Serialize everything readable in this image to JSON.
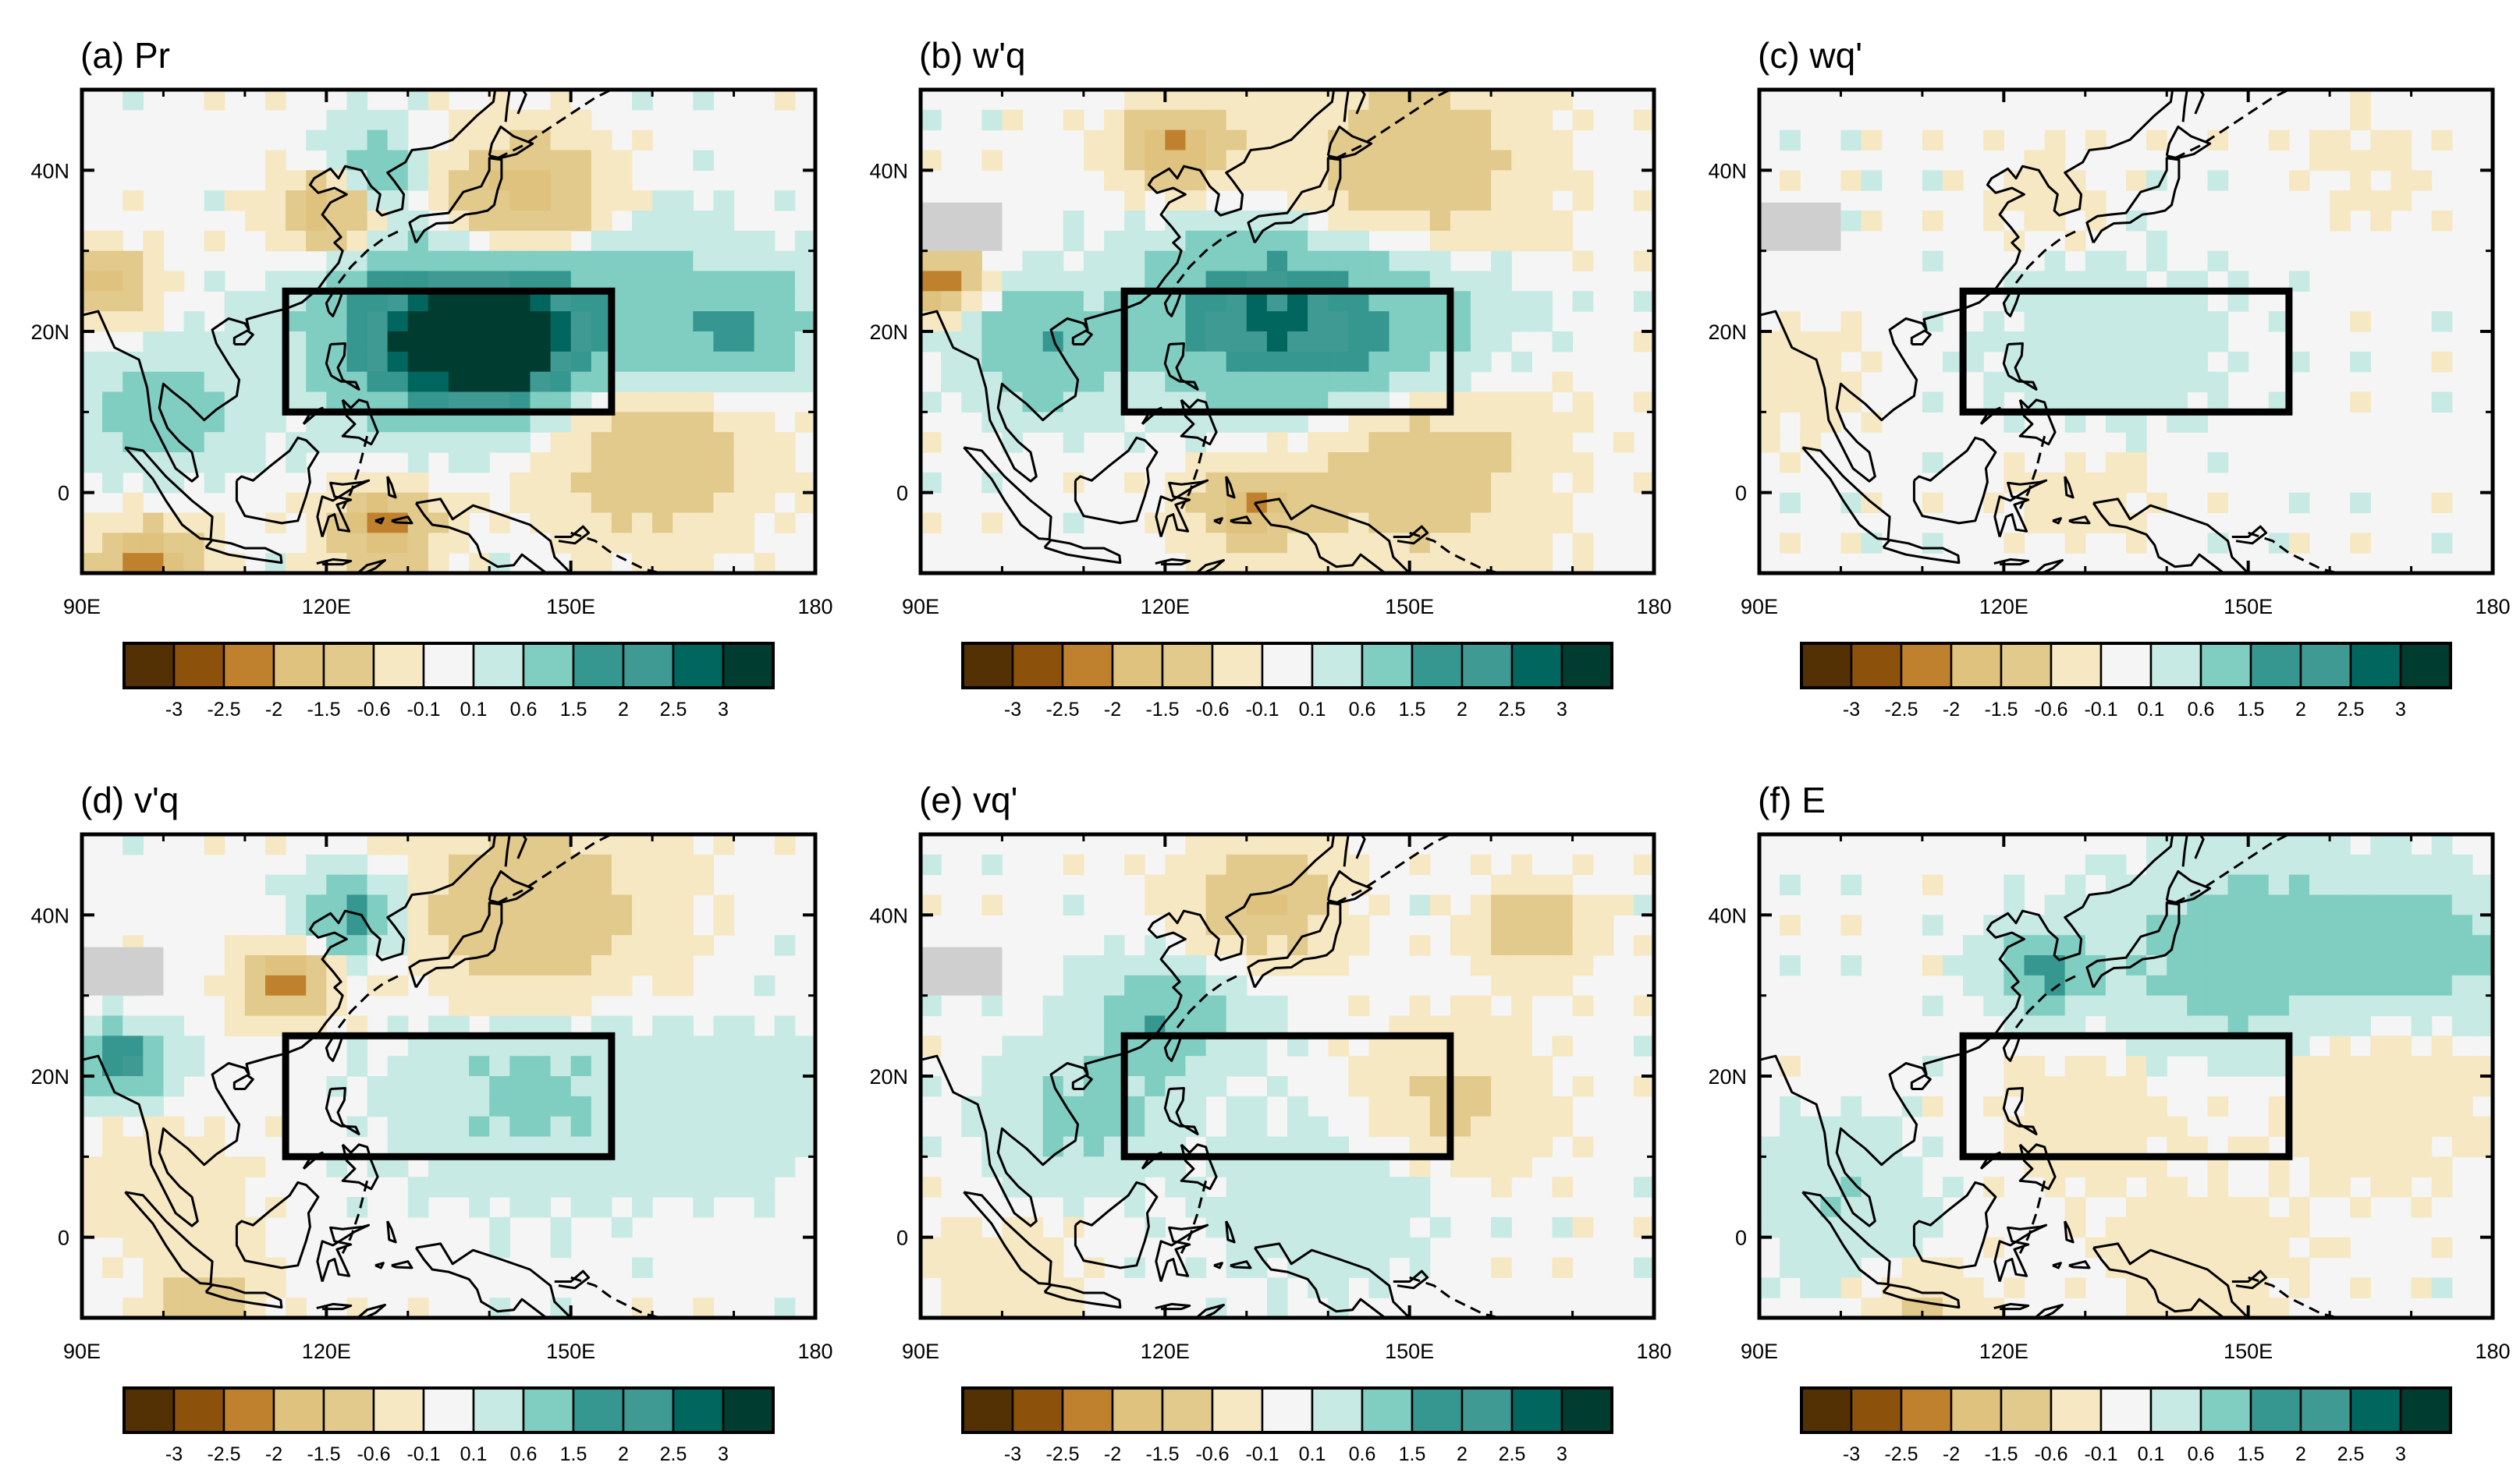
{
  "figure": {
    "axes": {
      "x_ticks": [
        "90E",
        "120E",
        "150E",
        "180"
      ],
      "x_values": [
        90,
        120,
        150,
        180
      ],
      "y_ticks": [
        "40N",
        "20N",
        "0"
      ],
      "y_values": [
        40,
        20,
        0
      ],
      "xlim": [
        90,
        180
      ],
      "ylim": [
        -10,
        50
      ]
    },
    "colorbar": {
      "levels": [
        "-3",
        "-2.5",
        "-2",
        "-1.5",
        "-0.6",
        "-0.1",
        "0.1",
        "0.6",
        "1.5",
        "2",
        "2.5",
        "3"
      ],
      "colors": [
        "#543005",
        "#8c510a",
        "#bf812d",
        "#dfc27d",
        "#e2c98c",
        "#f6e8c3",
        "#f5f5f5",
        "#c7eae5",
        "#80cdc1",
        "#35978f",
        "#3f9a93",
        "#01665e",
        "#003c30"
      ]
    },
    "region_box": {
      "lon": [
        115,
        155
      ],
      "lat": [
        10,
        25
      ]
    }
  },
  "chart_data": [
    {
      "type": "heatmap",
      "title": "(a) Pr",
      "fields": [
        {
          "lon": 140,
          "lat": 18,
          "v": 3.2,
          "r": 9
        },
        {
          "lon": 130,
          "lat": 20,
          "v": 2.3,
          "r": 12
        },
        {
          "lon": 150,
          "lat": 22,
          "v": 1.6,
          "r": 14
        },
        {
          "lon": 170,
          "lat": 20,
          "v": 1.6,
          "r": 9
        },
        {
          "lon": 100,
          "lat": 10,
          "v": 1.4,
          "r": 8
        },
        {
          "lon": 125,
          "lat": 40,
          "v": 1.2,
          "r": 6
        },
        {
          "lon": 145,
          "lat": 36,
          "v": -2.2,
          "r": 9
        },
        {
          "lon": 120,
          "lat": 35,
          "v": -2.0,
          "r": 6
        },
        {
          "lon": 127,
          "lat": -4,
          "v": -2.3,
          "r": 6
        },
        {
          "lon": 98,
          "lat": -9,
          "v": -2.5,
          "r": 6
        },
        {
          "lon": 160,
          "lat": 5,
          "v": -1.4,
          "r": 12
        },
        {
          "lon": 93,
          "lat": 26,
          "v": -1.8,
          "r": 5
        }
      ]
    },
    {
      "type": "heatmap",
      "title": "(b) w'q",
      "fields": [
        {
          "lon": 130,
          "lat": 22,
          "v": 2.1,
          "r": 12
        },
        {
          "lon": 145,
          "lat": 20,
          "v": 1.6,
          "r": 14
        },
        {
          "lon": 105,
          "lat": 18,
          "v": 1.5,
          "r": 9
        },
        {
          "lon": 92,
          "lat": 26,
          "v": -2.6,
          "r": 5
        },
        {
          "lon": 122,
          "lat": 43,
          "v": -2.2,
          "r": 6
        },
        {
          "lon": 130,
          "lat": -2,
          "v": -2.0,
          "r": 6
        },
        {
          "lon": 150,
          "lat": 4,
          "v": -1.3,
          "r": 14
        },
        {
          "lon": 150,
          "lat": 40,
          "v": -1.2,
          "r": 14
        }
      ]
    },
    {
      "type": "heatmap",
      "title": "(c) wq'",
      "fields": [
        {
          "lon": 132,
          "lat": 18,
          "v": 0.4,
          "r": 14
        },
        {
          "lon": 95,
          "lat": 15,
          "v": -0.4,
          "r": 8
        },
        {
          "lon": 125,
          "lat": 36,
          "v": -0.3,
          "r": 8
        },
        {
          "lon": 165,
          "lat": 40,
          "v": -0.2,
          "r": 8
        },
        {
          "lon": 130,
          "lat": 0,
          "v": -0.3,
          "r": 9
        }
      ]
    },
    {
      "type": "heatmap",
      "title": "(d) v'q",
      "fields": [
        {
          "lon": 115,
          "lat": 32,
          "v": -2.6,
          "r": 5
        },
        {
          "lon": 123,
          "lat": 40,
          "v": 1.8,
          "r": 6
        },
        {
          "lon": 95,
          "lat": 22,
          "v": 2.2,
          "r": 5
        },
        {
          "lon": 145,
          "lat": 40,
          "v": -1.3,
          "r": 14
        },
        {
          "lon": 100,
          "lat": 5,
          "v": -0.5,
          "r": 9
        },
        {
          "lon": 145,
          "lat": 18,
          "v": 0.8,
          "r": 14
        },
        {
          "lon": 170,
          "lat": 16,
          "v": 0.4,
          "r": 12
        },
        {
          "lon": 105,
          "lat": -9,
          "v": -1.4,
          "r": 6
        }
      ]
    },
    {
      "type": "heatmap",
      "title": "(e) vq'",
      "fields": [
        {
          "lon": 120,
          "lat": 27,
          "v": 1.5,
          "r": 8
        },
        {
          "lon": 110,
          "lat": 15,
          "v": 0.8,
          "r": 10
        },
        {
          "lon": 132,
          "lat": 42,
          "v": -1.6,
          "r": 8
        },
        {
          "lon": 155,
          "lat": 17,
          "v": -0.8,
          "r": 10
        },
        {
          "lon": 165,
          "lat": 38,
          "v": -1.2,
          "r": 6
        },
        {
          "lon": 140,
          "lat": 5,
          "v": 0.5,
          "r": 12
        },
        {
          "lon": 100,
          "lat": -5,
          "v": -0.5,
          "r": 8
        }
      ]
    },
    {
      "type": "heatmap",
      "title": "(f) E",
      "fields": [
        {
          "lon": 150,
          "lat": 35,
          "v": 1.2,
          "r": 14
        },
        {
          "lon": 125,
          "lat": 33,
          "v": 1.7,
          "r": 6
        },
        {
          "lon": 172,
          "lat": 36,
          "v": 1.0,
          "r": 10
        },
        {
          "lon": 100,
          "lat": 5,
          "v": 0.6,
          "r": 10
        },
        {
          "lon": 165,
          "lat": 18,
          "v": -0.5,
          "r": 12
        },
        {
          "lon": 130,
          "lat": 15,
          "v": -0.4,
          "r": 10
        },
        {
          "lon": 145,
          "lat": -3,
          "v": -0.5,
          "r": 10
        },
        {
          "lon": 110,
          "lat": -9,
          "v": -0.8,
          "r": 6
        }
      ]
    }
  ]
}
